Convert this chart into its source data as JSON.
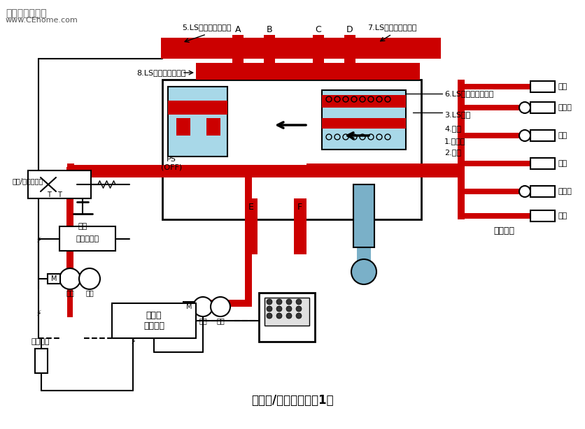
{
  "title": "（合流/分流阀油路图1）",
  "watermark_line1": "铁甲工程机械网",
  "watermark_line2": "www.CEhome.com",
  "bg_color": "#ffffff",
  "red_color": "#cc0000",
  "light_blue_color": "#a8d8e8",
  "blue_gray_color": "#7ab0c8",
  "dark_red": "#990000",
  "labels": {
    "ls5": "5.LS回路（铲斗端）",
    "ls7": "7.LS回路（小臂端）",
    "ls6": "6.LS回路（小臂端）",
    "ls8": "8.LS回路（铲斗端）",
    "ls3": "3.LS滑阀",
    "spring4": "4.弹簧",
    "main1": "1.主滑阀",
    "spring2": "2.弹簧",
    "ps_off": "PS\n(OFF)",
    "A": "A",
    "B": "B",
    "C": "C",
    "D": "D",
    "E": "E",
    "F": "F",
    "solenoid": "合流/分流电磁阀",
    "oil_tank": "油箱",
    "pressure_reduce": "自压减压阀",
    "front_pump1": "前泵",
    "rear_pump1": "后泵",
    "front_pump2": "前泵",
    "rear_pump2": "后泵",
    "governor": "调速器\n泵控制器",
    "joystick": "操纵手柄",
    "main_control": "主控制阀",
    "stick": "斗杆",
    "right_travel": "右行走",
    "rotate": "回转",
    "boom": "动臂",
    "left_travel": "左行走",
    "bucket": "铲斗"
  }
}
